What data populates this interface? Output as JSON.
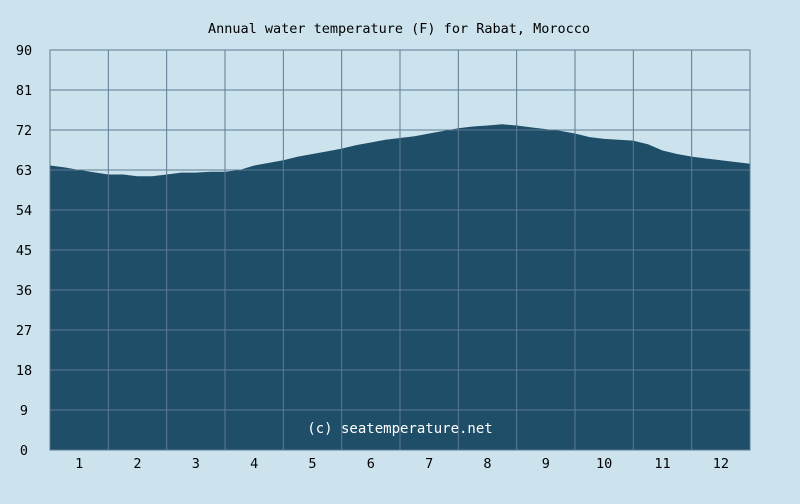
{
  "chart_data": {
    "type": "area",
    "title": "Annual water temperature (F) for Rabat, Morocco",
    "xlabel": "",
    "ylabel": "",
    "x_ticks": [
      "1",
      "2",
      "3",
      "4",
      "5",
      "6",
      "7",
      "8",
      "9",
      "10",
      "11",
      "12"
    ],
    "y_ticks": [
      "0",
      "9",
      "18",
      "27",
      "36",
      "45",
      "54",
      "63",
      "72",
      "81",
      "90"
    ],
    "xlim": [
      0.5,
      12.5
    ],
    "ylim": [
      0,
      90
    ],
    "grid": true,
    "series": [
      {
        "x": [
          0.5,
          0.75,
          1.0,
          1.25,
          1.5,
          1.75,
          2.0,
          2.25,
          2.5,
          2.75,
          3.0,
          3.25,
          3.5,
          3.75,
          4.0,
          4.25,
          4.5,
          4.75,
          5.0,
          5.25,
          5.5,
          5.75,
          6.0,
          6.25,
          6.5,
          6.75,
          7.0,
          7.25,
          7.5,
          7.75,
          8.0,
          8.25,
          8.5,
          8.75,
          9.0,
          9.25,
          9.5,
          9.75,
          10.0,
          10.25,
          10.5,
          10.75,
          11.0,
          11.25,
          11.5,
          11.75,
          12.0,
          12.25,
          12.5
        ],
        "values": [
          64.0,
          63.6,
          63.0,
          62.5,
          62.0,
          62.0,
          61.6,
          61.6,
          62.0,
          62.4,
          62.4,
          62.6,
          62.6,
          63.0,
          64.0,
          64.6,
          65.2,
          66.0,
          66.6,
          67.2,
          67.8,
          68.6,
          69.2,
          69.8,
          70.2,
          70.6,
          71.2,
          71.8,
          72.4,
          72.8,
          73.0,
          73.3,
          73.0,
          72.6,
          72.2,
          71.8,
          71.2,
          70.4,
          70.0,
          69.8,
          69.6,
          68.8,
          67.4,
          66.6,
          66.0,
          65.6,
          65.2,
          64.8,
          64.4
        ]
      }
    ],
    "colors": {
      "background": "#cce3ee",
      "plot_background": "#cce3ee",
      "fill": "#1f4e69",
      "grid": "#5d7b91",
      "text": "#000000",
      "watermark": "#ffffff"
    }
  },
  "watermark": "(c) seatemperature.net"
}
